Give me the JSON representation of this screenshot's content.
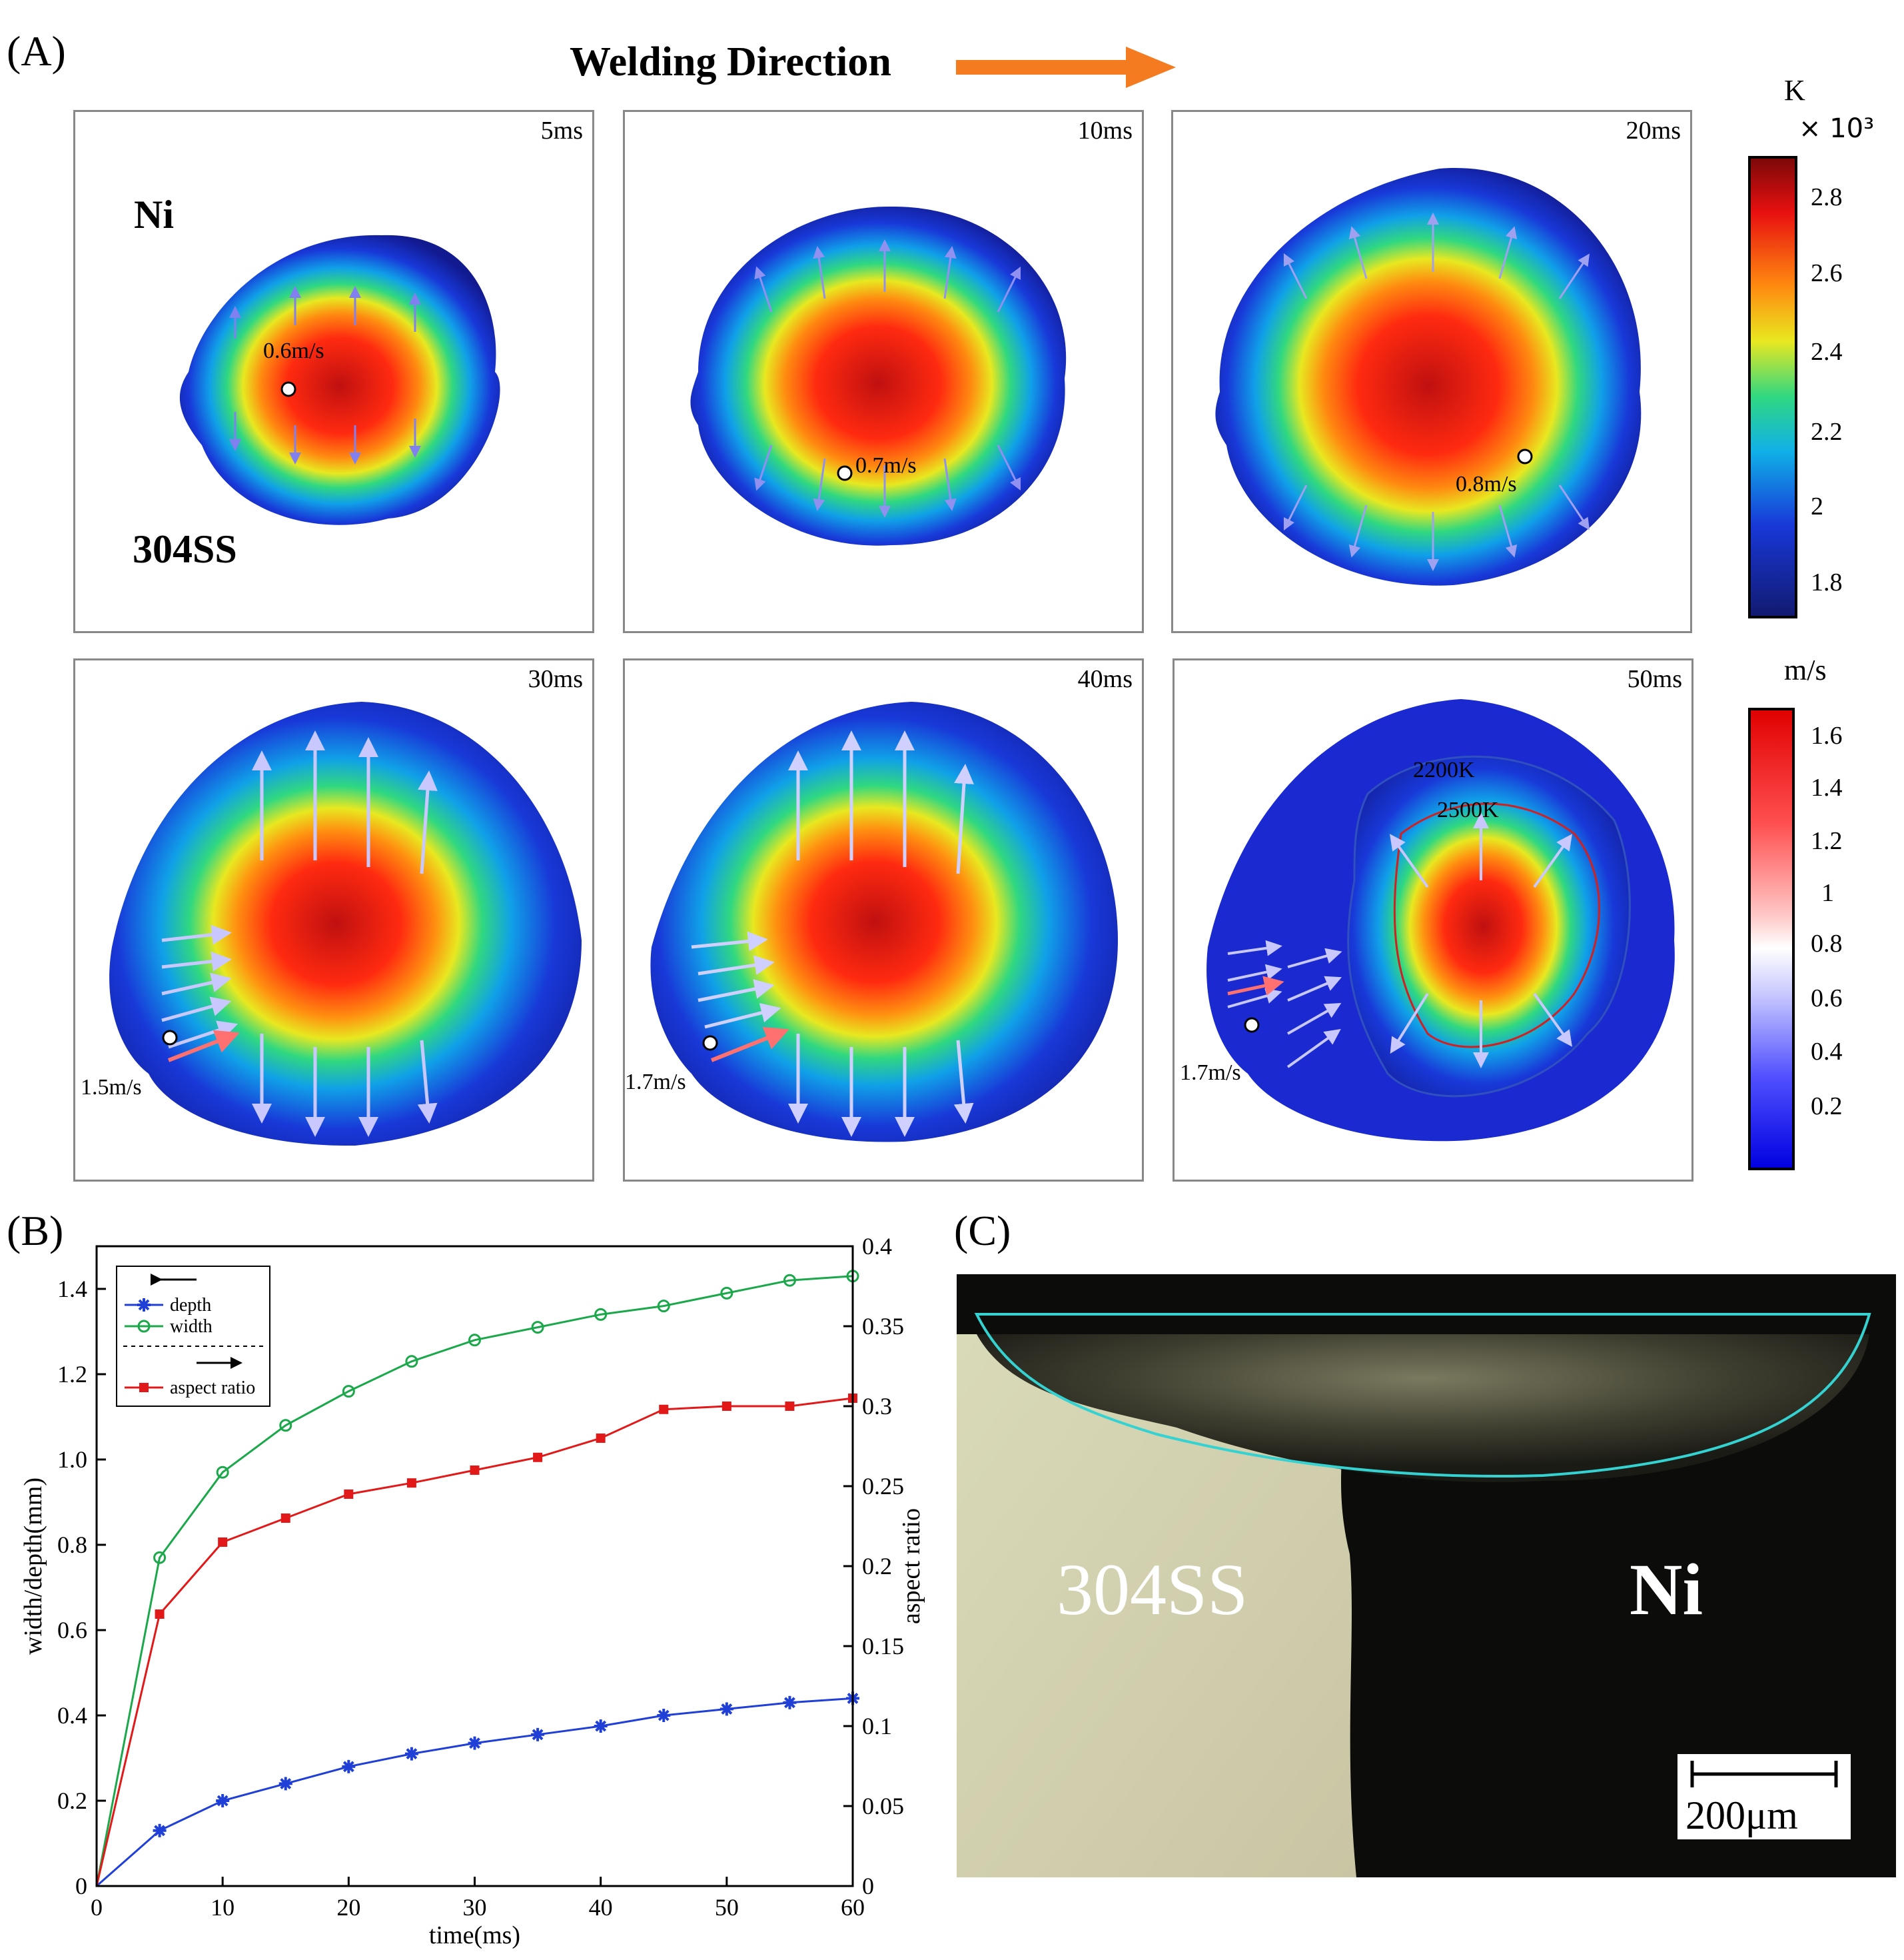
{
  "panelA": {
    "letter": "(A)",
    "title": "Welding Direction",
    "materials": {
      "top": "Ni",
      "bottom": "304SS"
    },
    "frames": [
      {
        "time": "5ms",
        "velocity": "0.6m/s"
      },
      {
        "time": "10ms",
        "velocity": "0.7m/s"
      },
      {
        "time": "20ms",
        "velocity": "0.8m/s"
      },
      {
        "time": "30ms",
        "velocity": "1.5m/s"
      },
      {
        "time": "40ms",
        "velocity": "1.7m/s"
      },
      {
        "time": "50ms",
        "velocity": "1.7m/s"
      }
    ],
    "contours": [
      "2200K",
      "2500K"
    ],
    "temp_colorbar": {
      "unit": "K",
      "multiplier": "× 10³",
      "ticks": [
        "2.8",
        "2.6",
        "2.4",
        "2.2",
        "2",
        "1.8"
      ]
    },
    "vel_colorbar": {
      "unit": "m/s",
      "ticks": [
        "1.6",
        "1.4",
        "1.2",
        "1",
        "0.8",
        "0.6",
        "0.4",
        "0.2"
      ]
    },
    "colors": {
      "arrow": "#f47b20"
    }
  },
  "panelB": {
    "letter": "(B)"
  },
  "panelC": {
    "letter": "(C)",
    "left_material": "304SS",
    "right_material": "Ni",
    "scale_bar": "200μm",
    "colors": {
      "fusion_line": "#35d2d2"
    }
  },
  "chart_data": {
    "type": "line",
    "x": [
      0,
      5,
      10,
      15,
      20,
      25,
      30,
      35,
      40,
      45,
      50,
      55,
      60
    ],
    "xlabel": "time(ms)",
    "ylabel": "width/depth(mm)",
    "y2label": "aspect ratio",
    "xlim": [
      0,
      60
    ],
    "ylim": [
      0,
      1.5
    ],
    "y2lim": [
      0,
      0.4
    ],
    "xticks": [
      "0",
      "10",
      "20",
      "30",
      "40",
      "50",
      "60"
    ],
    "yticks": [
      "0",
      "0.2",
      "0.4",
      "0.6",
      "0.8",
      "1.0",
      "1.2",
      "1.4"
    ],
    "y2ticks": [
      "0",
      "0.05",
      "0.1",
      "0.15",
      "0.2",
      "0.25",
      "0.3",
      "0.35",
      "0.4"
    ],
    "series": [
      {
        "name": "depth",
        "axis": "left",
        "color": "#1f3fd6",
        "marker": "star",
        "values": [
          0,
          0.13,
          0.2,
          0.24,
          0.28,
          0.31,
          0.335,
          0.355,
          0.375,
          0.4,
          0.415,
          0.43,
          0.44
        ]
      },
      {
        "name": "width",
        "axis": "left",
        "color": "#1aa84a",
        "marker": "circle",
        "values": [
          0,
          0.77,
          0.97,
          1.08,
          1.16,
          1.23,
          1.28,
          1.31,
          1.34,
          1.36,
          1.39,
          1.42,
          1.43
        ]
      },
      {
        "name": "aspect ratio",
        "axis": "right",
        "color": "#e11919",
        "marker": "square",
        "values": [
          0,
          0.17,
          0.215,
          0.23,
          0.245,
          0.252,
          0.26,
          0.268,
          0.28,
          0.298,
          0.3,
          0.3,
          0.305
        ]
      }
    ],
    "legend": {
      "position": "top-left",
      "entries": [
        "depth",
        "width",
        "aspect ratio"
      ]
    }
  }
}
